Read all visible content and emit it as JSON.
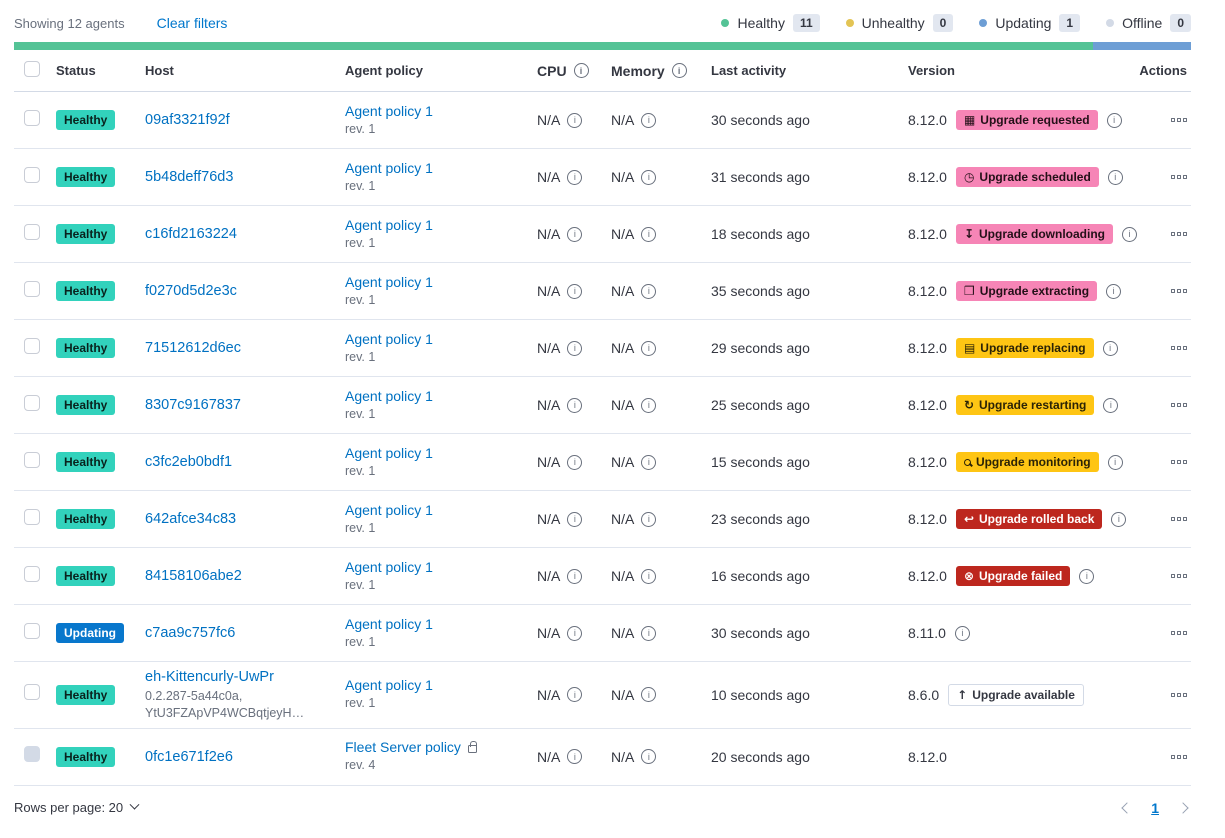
{
  "toolbar": {
    "showing_label": "Showing 12 agents",
    "clear_filters_label": "Clear filters",
    "legend": [
      {
        "label": "Healthy",
        "count": "11",
        "color": "#54c396"
      },
      {
        "label": "Unhealthy",
        "count": "0",
        "color": "#e3c454"
      },
      {
        "label": "Updating",
        "count": "1",
        "color": "#6d9ed5"
      },
      {
        "label": "Offline",
        "count": "0",
        "color": "#d3dae6"
      }
    ]
  },
  "health_bar": {
    "segments": [
      {
        "name": "healthy",
        "color": "#54c396",
        "fraction": 0.9167
      },
      {
        "name": "updating",
        "color": "#6d9ed5",
        "fraction": 0.0833
      }
    ]
  },
  "icons": {
    "calendar": "▦",
    "clock": "◷",
    "download": "↧",
    "package": "❒",
    "document": "▤",
    "refresh": "↻",
    "inspect": "",
    "return": "↩",
    "error": "⊗",
    "arrow-up": "↑"
  },
  "colors": {
    "link_blue": "#0071c2",
    "healthy_badge": "#32d2bc",
    "updating_badge": "#0877cc",
    "accent_badge": "#f685b6",
    "warning_badge": "#fec514",
    "danger_badge": "#bd271e"
  },
  "table": {
    "headers": {
      "status": "Status",
      "host": "Host",
      "policy": "Agent policy",
      "cpu": "CPU",
      "memory": "Memory",
      "last_activity": "Last activity",
      "version": "Version",
      "actions": "Actions"
    },
    "rows": [
      {
        "status": {
          "label": "Healthy",
          "variant": "healthy"
        },
        "host": {
          "name": "09af3321f92f"
        },
        "policy": {
          "name": "Agent policy 1",
          "rev": "rev. 1",
          "locked": false
        },
        "cpu": "N/A",
        "memory": "N/A",
        "last_activity": "30 seconds ago",
        "version": "8.12.0",
        "upgrade": {
          "label": "Upgrade requested",
          "variant": "accent",
          "icon": "calendar"
        },
        "version_info": true,
        "checkbox_disabled": false
      },
      {
        "status": {
          "label": "Healthy",
          "variant": "healthy"
        },
        "host": {
          "name": "5b48deff76d3"
        },
        "policy": {
          "name": "Agent policy 1",
          "rev": "rev. 1",
          "locked": false
        },
        "cpu": "N/A",
        "memory": "N/A",
        "last_activity": "31 seconds ago",
        "version": "8.12.0",
        "upgrade": {
          "label": "Upgrade scheduled",
          "variant": "accent",
          "icon": "clock"
        },
        "version_info": true,
        "checkbox_disabled": false
      },
      {
        "status": {
          "label": "Healthy",
          "variant": "healthy"
        },
        "host": {
          "name": "c16fd2163224"
        },
        "policy": {
          "name": "Agent policy 1",
          "rev": "rev. 1",
          "locked": false
        },
        "cpu": "N/A",
        "memory": "N/A",
        "last_activity": "18 seconds ago",
        "version": "8.12.0",
        "upgrade": {
          "label": "Upgrade downloading",
          "variant": "accent",
          "icon": "download"
        },
        "version_info": true,
        "checkbox_disabled": false
      },
      {
        "status": {
          "label": "Healthy",
          "variant": "healthy"
        },
        "host": {
          "name": "f0270d5d2e3c"
        },
        "policy": {
          "name": "Agent policy 1",
          "rev": "rev. 1",
          "locked": false
        },
        "cpu": "N/A",
        "memory": "N/A",
        "last_activity": "35 seconds ago",
        "version": "8.12.0",
        "upgrade": {
          "label": "Upgrade extracting",
          "variant": "accent",
          "icon": "package"
        },
        "version_info": true,
        "checkbox_disabled": false
      },
      {
        "status": {
          "label": "Healthy",
          "variant": "healthy"
        },
        "host": {
          "name": "71512612d6ec"
        },
        "policy": {
          "name": "Agent policy 1",
          "rev": "rev. 1",
          "locked": false
        },
        "cpu": "N/A",
        "memory": "N/A",
        "last_activity": "29 seconds ago",
        "version": "8.12.0",
        "upgrade": {
          "label": "Upgrade replacing",
          "variant": "warning",
          "icon": "document"
        },
        "version_info": true,
        "checkbox_disabled": false
      },
      {
        "status": {
          "label": "Healthy",
          "variant": "healthy"
        },
        "host": {
          "name": "8307c9167837"
        },
        "policy": {
          "name": "Agent policy 1",
          "rev": "rev. 1",
          "locked": false
        },
        "cpu": "N/A",
        "memory": "N/A",
        "last_activity": "25 seconds ago",
        "version": "8.12.0",
        "upgrade": {
          "label": "Upgrade restarting",
          "variant": "warning",
          "icon": "refresh"
        },
        "version_info": true,
        "checkbox_disabled": false
      },
      {
        "status": {
          "label": "Healthy",
          "variant": "healthy"
        },
        "host": {
          "name": "c3fc2eb0bdf1"
        },
        "policy": {
          "name": "Agent policy 1",
          "rev": "rev. 1",
          "locked": false
        },
        "cpu": "N/A",
        "memory": "N/A",
        "last_activity": "15 seconds ago",
        "version": "8.12.0",
        "upgrade": {
          "label": "Upgrade monitoring",
          "variant": "warning",
          "icon": "inspect"
        },
        "version_info": true,
        "checkbox_disabled": false
      },
      {
        "status": {
          "label": "Healthy",
          "variant": "healthy"
        },
        "host": {
          "name": "642afce34c83"
        },
        "policy": {
          "name": "Agent policy 1",
          "rev": "rev. 1",
          "locked": false
        },
        "cpu": "N/A",
        "memory": "N/A",
        "last_activity": "23 seconds ago",
        "version": "8.12.0",
        "upgrade": {
          "label": "Upgrade rolled back",
          "variant": "danger",
          "icon": "return"
        },
        "version_info": true,
        "checkbox_disabled": false
      },
      {
        "status": {
          "label": "Healthy",
          "variant": "healthy"
        },
        "host": {
          "name": "84158106abe2"
        },
        "policy": {
          "name": "Agent policy 1",
          "rev": "rev. 1",
          "locked": false
        },
        "cpu": "N/A",
        "memory": "N/A",
        "last_activity": "16 seconds ago",
        "version": "8.12.0",
        "upgrade": {
          "label": "Upgrade failed",
          "variant": "danger",
          "icon": "error"
        },
        "version_info": true,
        "checkbox_disabled": false
      },
      {
        "status": {
          "label": "Updating",
          "variant": "updating"
        },
        "host": {
          "name": "c7aa9c757fc6"
        },
        "policy": {
          "name": "Agent policy 1",
          "rev": "rev. 1",
          "locked": false
        },
        "cpu": "N/A",
        "memory": "N/A",
        "last_activity": "30 seconds ago",
        "version": "8.11.0",
        "upgrade": null,
        "version_info": true,
        "checkbox_disabled": false
      },
      {
        "status": {
          "label": "Healthy",
          "variant": "healthy"
        },
        "host": {
          "name": "eh-Kittencurly-UwPr",
          "sub": [
            "0.2.287-5a44c0a,",
            "YtU3FZApVP4WCBqtjeyH…"
          ]
        },
        "policy": {
          "name": "Agent policy 1",
          "rev": "rev. 1",
          "locked": false
        },
        "cpu": "N/A",
        "memory": "N/A",
        "last_activity": "10 seconds ago",
        "version": "8.6.0",
        "upgrade": {
          "label": "Upgrade available",
          "variant": "hollow",
          "icon": "arrow-up"
        },
        "version_info": false,
        "checkbox_disabled": false
      },
      {
        "status": {
          "label": "Healthy",
          "variant": "healthy"
        },
        "host": {
          "name": "0fc1e671f2e6"
        },
        "policy": {
          "name": "Fleet Server policy",
          "rev": "rev. 4",
          "locked": true
        },
        "cpu": "N/A",
        "memory": "N/A",
        "last_activity": "20 seconds ago",
        "version": "8.12.0",
        "upgrade": null,
        "version_info": false,
        "checkbox_disabled": true
      }
    ]
  },
  "footer": {
    "rows_per_page_label": "Rows per page: 20",
    "page": "1"
  }
}
